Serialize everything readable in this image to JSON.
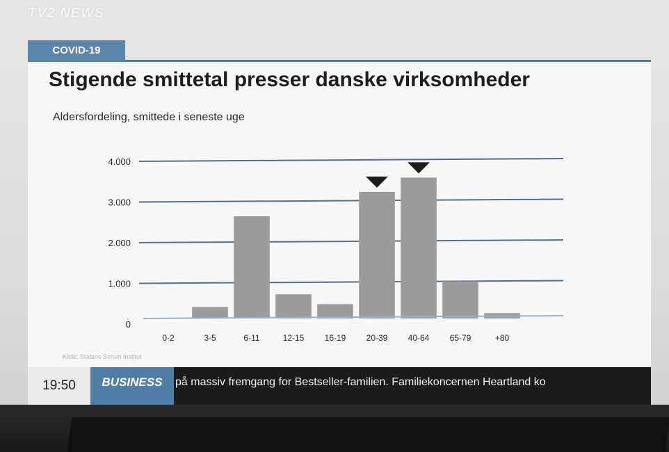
{
  "channel": {
    "logo": "TV2 NEWS"
  },
  "graphic": {
    "tag": "COVID-19",
    "title": "Stigende smittetal presser danske virksomheder",
    "subtitle": "Aldersfordeling, smittede i seneste uge",
    "source": "Kilde: Statens Serum Institut"
  },
  "ticker": {
    "time": "19:50",
    "section": "BUSINESS",
    "text": "på massiv fremgang for Bestseller-familien. Familiekoncernen Heartland ko"
  },
  "chart_data": {
    "type": "bar",
    "title": "Stigende smittetal presser danske virksomheder",
    "subtitle": "Aldersfordeling, smittede i seneste uge",
    "categories": [
      "0-2",
      "3-5",
      "6-11",
      "12-15",
      "16-19",
      "20-39",
      "40-64",
      "65-79",
      "+80"
    ],
    "values": [
      130,
      420,
      2650,
      730,
      490,
      3250,
      3600,
      1050,
      270
    ],
    "highlighted": [
      "20-39",
      "40-64"
    ],
    "ylim": [
      0,
      4000
    ],
    "yticks": [
      0,
      1000,
      2000,
      3000,
      4000
    ],
    "ytick_labels": [
      "0",
      "1.000",
      "2.000",
      "3.000",
      "4.000"
    ],
    "grid": true,
    "colors": {
      "bar": "#9c9c9c",
      "grid": "#56708a",
      "marker": "#1e1e1e"
    }
  }
}
